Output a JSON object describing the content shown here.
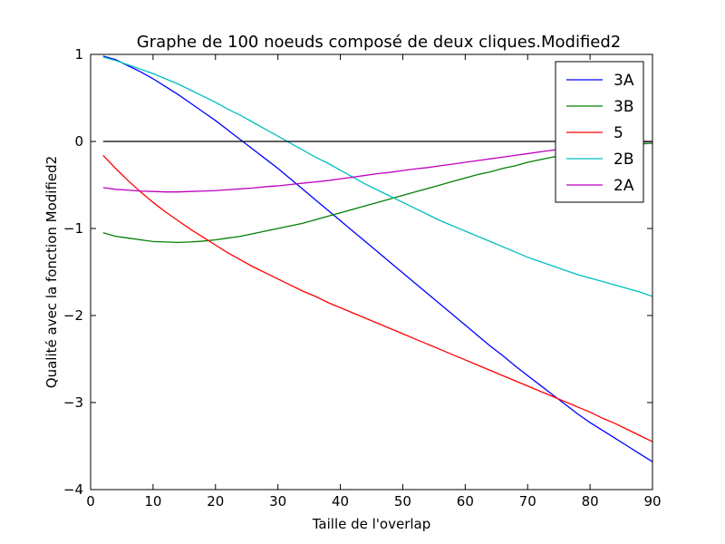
{
  "chart_data": {
    "type": "line",
    "title": "Graphe de 100 noeuds composé de deux cliques.Modified2",
    "xlabel": "Taille de l'overlap",
    "ylabel": "Qualité avec la fonction Modified2",
    "xlim": [
      0,
      90
    ],
    "ylim": [
      -4,
      1
    ],
    "xticks": [
      0,
      10,
      20,
      30,
      40,
      50,
      60,
      70,
      80,
      90
    ],
    "yticks": [
      1,
      0,
      -1,
      -2,
      -3,
      -4
    ],
    "grid": false,
    "legend_position": "top-right",
    "reference_line": {
      "y": 0,
      "color": "#000000"
    },
    "x": [
      2,
      4,
      6,
      8,
      10,
      12,
      14,
      16,
      18,
      20,
      22,
      24,
      26,
      28,
      30,
      32,
      34,
      36,
      38,
      40,
      42,
      44,
      46,
      48,
      50,
      52,
      54,
      56,
      58,
      60,
      62,
      64,
      66,
      68,
      70,
      72,
      74,
      76,
      78,
      80,
      82,
      84,
      86,
      88,
      90
    ],
    "series": [
      {
        "name": "3A",
        "color": "#0000ff",
        "values": [
          0.98,
          0.94,
          0.87,
          0.8,
          0.72,
          0.63,
          0.54,
          0.44,
          0.34,
          0.24,
          0.13,
          0.02,
          -0.09,
          -0.2,
          -0.31,
          -0.43,
          -0.55,
          -0.67,
          -0.79,
          -0.91,
          -1.03,
          -1.15,
          -1.27,
          -1.39,
          -1.51,
          -1.63,
          -1.75,
          -1.87,
          -1.99,
          -2.11,
          -2.23,
          -2.35,
          -2.46,
          -2.58,
          -2.69,
          -2.8,
          -2.91,
          -3.02,
          -3.13,
          -3.23,
          -3.32,
          -3.41,
          -3.5,
          -3.59,
          -3.68
        ]
      },
      {
        "name": "3B",
        "color": "#008000",
        "values": [
          -1.05,
          -1.09,
          -1.11,
          -1.13,
          -1.15,
          -1.155,
          -1.16,
          -1.155,
          -1.145,
          -1.13,
          -1.11,
          -1.09,
          -1.06,
          -1.03,
          -1.0,
          -0.97,
          -0.94,
          -0.9,
          -0.86,
          -0.82,
          -0.78,
          -0.74,
          -0.7,
          -0.66,
          -0.62,
          -0.58,
          -0.54,
          -0.5,
          -0.46,
          -0.42,
          -0.38,
          -0.35,
          -0.31,
          -0.28,
          -0.24,
          -0.21,
          -0.18,
          -0.15,
          -0.12,
          -0.1,
          -0.08,
          -0.06,
          -0.05,
          -0.03,
          -0.02
        ]
      },
      {
        "name": "5",
        "color": "#ff0000",
        "values": [
          -0.16,
          -0.31,
          -0.45,
          -0.58,
          -0.7,
          -0.81,
          -0.91,
          -1.01,
          -1.1,
          -1.19,
          -1.28,
          -1.36,
          -1.44,
          -1.51,
          -1.58,
          -1.65,
          -1.72,
          -1.78,
          -1.85,
          -1.91,
          -1.97,
          -2.03,
          -2.09,
          -2.15,
          -2.21,
          -2.27,
          -2.33,
          -2.39,
          -2.45,
          -2.51,
          -2.57,
          -2.63,
          -2.69,
          -2.75,
          -2.81,
          -2.87,
          -2.93,
          -2.99,
          -3.05,
          -3.11,
          -3.18,
          -3.24,
          -3.31,
          -3.38,
          -3.45
        ]
      },
      {
        "name": "2B",
        "color": "#00bfbf",
        "values": [
          0.97,
          0.93,
          0.88,
          0.83,
          0.78,
          0.72,
          0.66,
          0.59,
          0.52,
          0.45,
          0.37,
          0.3,
          0.22,
          0.14,
          0.06,
          -0.02,
          -0.1,
          -0.18,
          -0.25,
          -0.33,
          -0.41,
          -0.49,
          -0.56,
          -0.63,
          -0.7,
          -0.77,
          -0.84,
          -0.91,
          -0.97,
          -1.03,
          -1.09,
          -1.15,
          -1.21,
          -1.27,
          -1.33,
          -1.38,
          -1.43,
          -1.48,
          -1.53,
          -1.57,
          -1.61,
          -1.65,
          -1.69,
          -1.73,
          -1.78
        ]
      },
      {
        "name": "2A",
        "color": "#bf00bf",
        "values": [
          -0.53,
          -0.55,
          -0.56,
          -0.57,
          -0.575,
          -0.58,
          -0.58,
          -0.575,
          -0.57,
          -0.565,
          -0.555,
          -0.545,
          -0.535,
          -0.52,
          -0.51,
          -0.495,
          -0.48,
          -0.465,
          -0.45,
          -0.43,
          -0.41,
          -0.39,
          -0.37,
          -0.355,
          -0.335,
          -0.315,
          -0.3,
          -0.28,
          -0.26,
          -0.24,
          -0.22,
          -0.2,
          -0.18,
          -0.16,
          -0.14,
          -0.12,
          -0.1,
          -0.08,
          -0.065,
          -0.05,
          -0.04,
          -0.03,
          -0.02,
          -0.01,
          0.0
        ]
      }
    ]
  }
}
